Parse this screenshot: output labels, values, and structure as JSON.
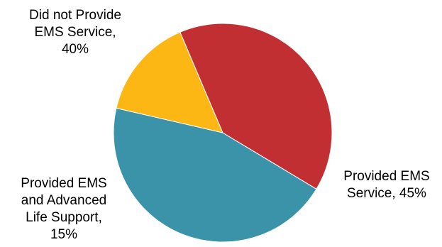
{
  "chart_data": {
    "type": "pie",
    "title": "",
    "slices": [
      {
        "label_lines": [
          "Provided EMS",
          "Service, 45%"
        ],
        "value": 45,
        "color": "#3a93a8"
      },
      {
        "label_lines": [
          "Provided EMS",
          "and Advanced",
          "Life Support,",
          "15%"
        ],
        "value": 15,
        "color": "#fdb714"
      },
      {
        "label_lines": [
          "Did not Provide",
          "EMS Service,",
          "40%"
        ],
        "value": 40,
        "color": "#c22f32"
      }
    ],
    "legend": "none"
  }
}
